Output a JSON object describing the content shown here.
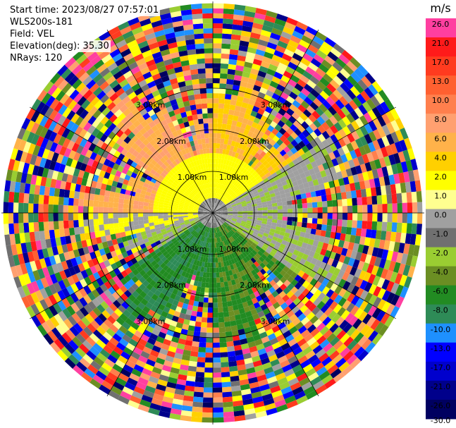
{
  "header": {
    "start_time": "Start time: 2023/08/27 07:57:01",
    "instrument": "WLS200s-181",
    "field": "Field: VEL",
    "elevation": "Elevation(deg): 35.30",
    "nrays": "NRays: 120"
  },
  "colorbar": {
    "unit": "m/s",
    "ticks": [
      "26.0",
      "21.0",
      "17.0",
      "13.0",
      "10.0",
      "8.0",
      "6.0",
      "4.0",
      "2.0",
      "1.0",
      "0.0",
      "-1.0",
      "-2.0",
      "-4.0",
      "-6.0",
      "-8.0",
      "-10.0",
      "-13.0",
      "-17.0",
      "-21.0",
      "-26.0",
      "-30.0"
    ],
    "colors": [
      "#ff3fa0",
      "#ff1a1a",
      "#ff3b1f",
      "#ff6030",
      "#ff7f4d",
      "#ffa070",
      "#ffb24a",
      "#ffd000",
      "#ffff00",
      "#ffff90",
      "#a0a0a0",
      "#707070",
      "#9acd32",
      "#6b8e23",
      "#228b22",
      "#2e8b57",
      "#1e90ff",
      "#0000ff",
      "#0000cd",
      "#00008b",
      "#000060"
    ]
  },
  "chart_data": {
    "type": "ppi",
    "field": "VEL",
    "units": "m/s",
    "n_rays": 120,
    "range_rings_km": [
      1.0,
      2.0,
      3.0
    ],
    "range_ring_labels": [
      "1.00km",
      "2.00km",
      "3.00km"
    ],
    "radial_lines_deg": [
      0,
      30,
      60,
      90,
      120,
      150,
      180,
      210,
      240,
      270,
      300,
      330
    ],
    "max_range_km": 5.0,
    "velocity_range": [
      -30,
      26
    ],
    "pattern": "positive (yellow/orange) to the north-west, near-zero grey east, negative (green) to the south, noisy random velocities beyond about 3 km"
  }
}
